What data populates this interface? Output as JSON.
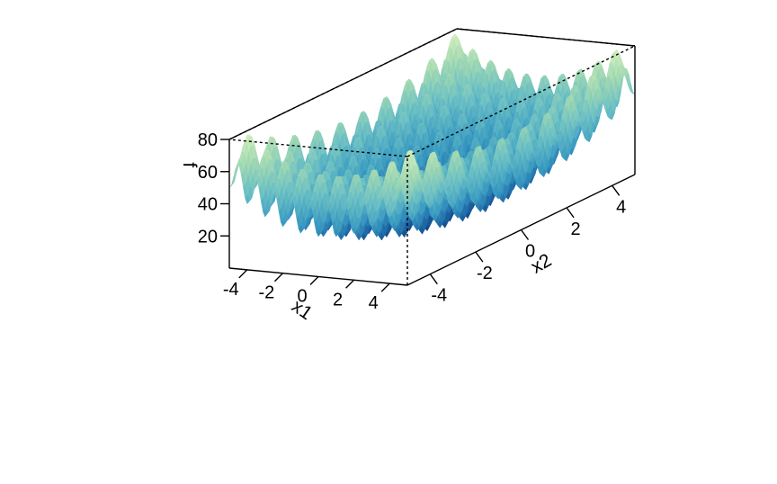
{
  "chart_data": {
    "type": "surface3d",
    "function": "Rastrigin",
    "x1": {
      "label": "x1",
      "range": [
        -5,
        5
      ],
      "ticks": [
        "-4",
        "-2",
        "0",
        "2",
        "4"
      ]
    },
    "x2": {
      "label": "x2",
      "range": [
        -5,
        5
      ],
      "ticks": [
        "-4",
        "-2",
        "0",
        "2",
        "4"
      ]
    },
    "f": {
      "label": "f",
      "range": [
        0,
        80
      ],
      "ticks": [
        "20",
        "40",
        "60",
        "80"
      ]
    },
    "colormap": [
      "#0b3e7e",
      "#1f6aa8",
      "#3b9cc2",
      "#6cc0c4",
      "#a3d9b2",
      "#d4efc0"
    ],
    "grid": false,
    "box": "full",
    "back_edges": "dotted"
  }
}
